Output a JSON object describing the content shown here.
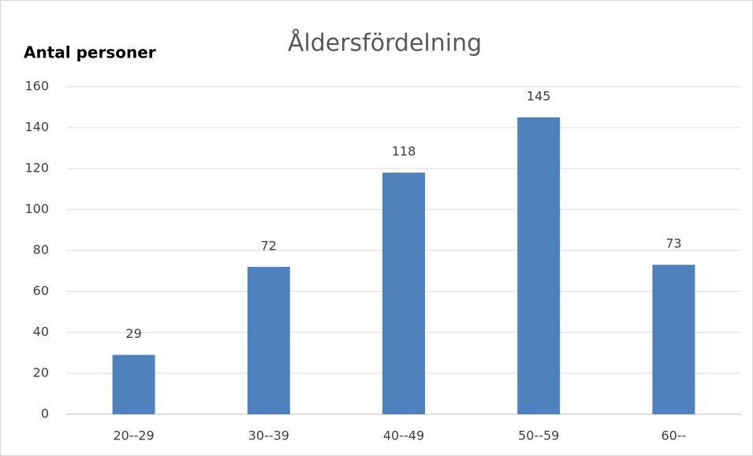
{
  "chart_data": {
    "type": "bar",
    "title": "Åldersfördelning",
    "y_label": "Antal personer",
    "categories": [
      "20--29",
      "30--39",
      "40--49",
      "50--59",
      "60--"
    ],
    "values": [
      29,
      72,
      118,
      145,
      73
    ],
    "color": "#4f81bd",
    "ylim": [
      0,
      160
    ],
    "yticks": [
      0,
      20,
      40,
      60,
      80,
      100,
      120,
      140,
      160
    ],
    "grid": true,
    "data_labels": true
  }
}
